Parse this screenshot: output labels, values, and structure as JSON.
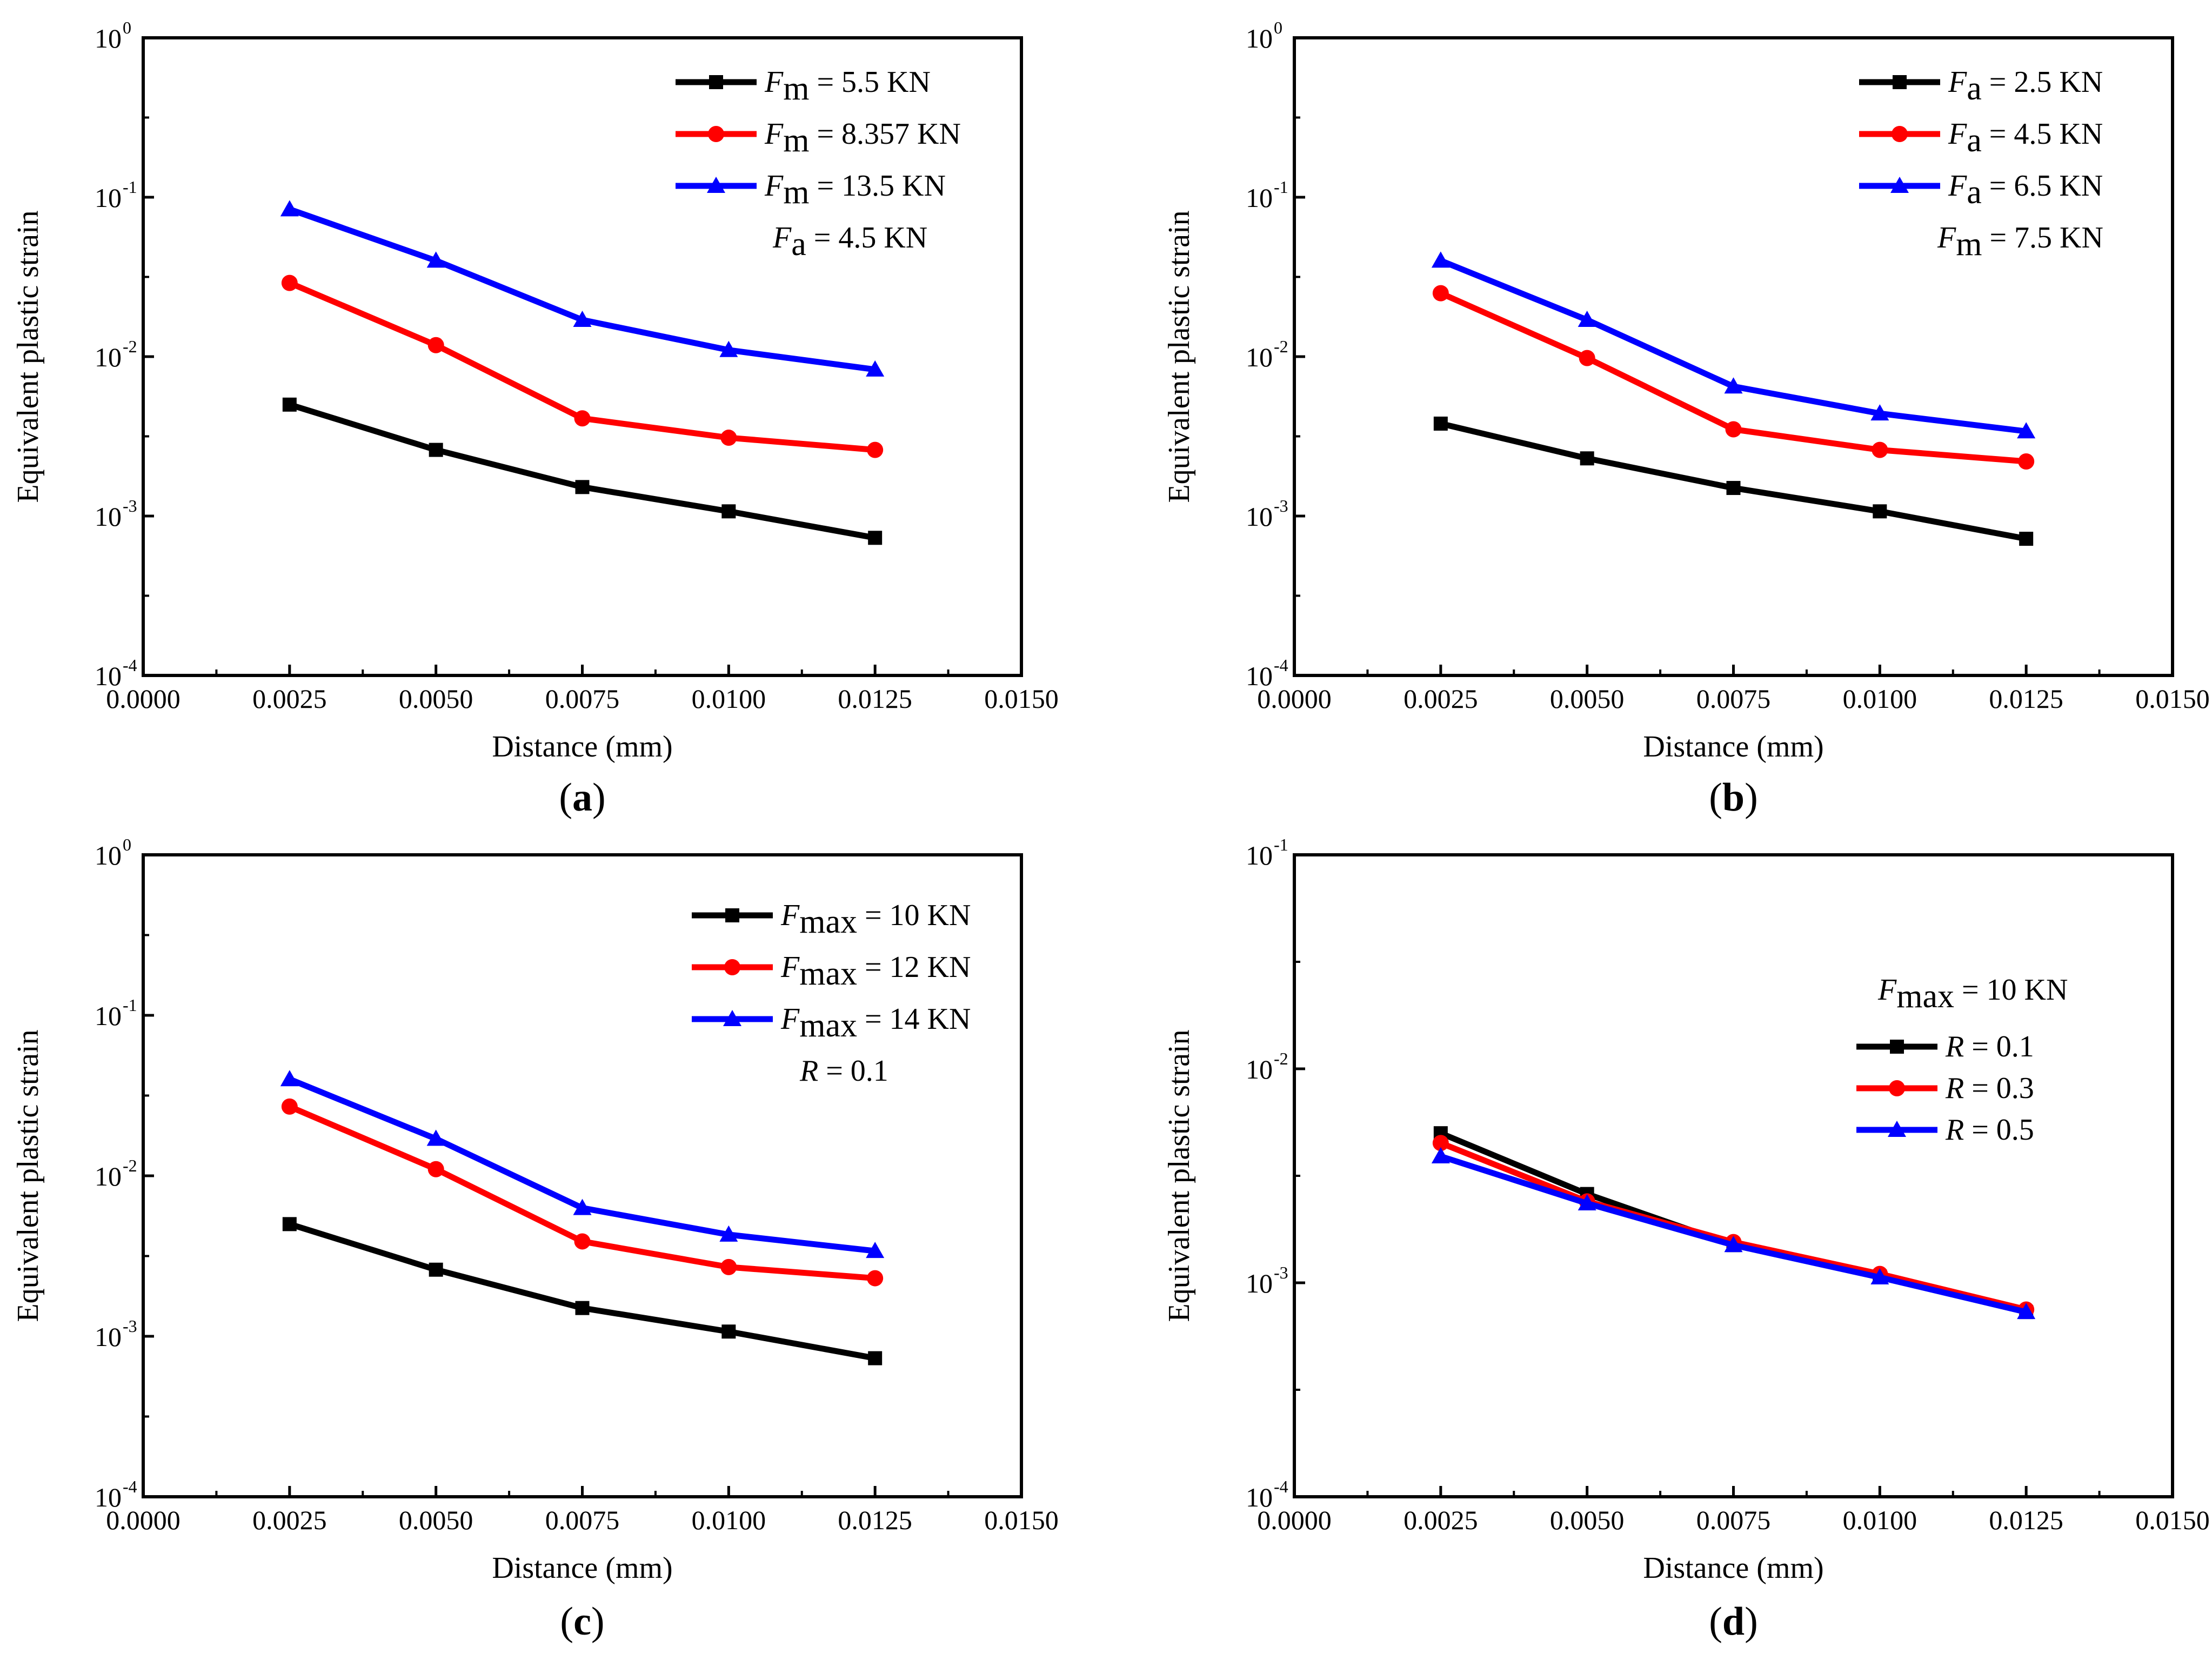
{
  "colors": {
    "black": "#000000",
    "red": "#ff0000",
    "blue": "#0000ff"
  },
  "chart_data": [
    {
      "type": "line",
      "panel_label": "a",
      "xlabel": "Distance (mm)",
      "ylabel": "Equivalent plastic strain",
      "xlim": [
        0,
        0.015
      ],
      "ylim": [
        0.0001,
        1
      ],
      "yscale": "log",
      "x_tick_labels": [
        "0.0000",
        "0.0025",
        "0.0050",
        "0.0075",
        "0.0100",
        "0.0125",
        "0.0150"
      ],
      "y_ticks": [
        {
          "base": "10",
          "exp": "-4"
        },
        {
          "base": "10",
          "exp": "-3"
        },
        {
          "base": "10",
          "exp": "-2"
        },
        {
          "base": "10",
          "exp": "-1"
        },
        {
          "base": "10",
          "exp": "0"
        }
      ],
      "x": [
        0.0025,
        0.005,
        0.0075,
        0.01,
        0.0125
      ],
      "series": [
        {
          "name": "Fm = 5.5 KN",
          "sym": "F",
          "sub": "m",
          "rest": " = 5.5 KN",
          "color": "#000000",
          "marker": "square",
          "values": [
            0.005,
            0.0026,
            0.00152,
            0.00107,
            0.00073
          ]
        },
        {
          "name": "Fm = 8.357 KN",
          "sym": "F",
          "sub": "m",
          "rest": " = 8.357 KN",
          "color": "#ff0000",
          "marker": "circle",
          "values": [
            0.029,
            0.0118,
            0.0041,
            0.0031,
            0.0026
          ]
        },
        {
          "name": "Fm = 13.5 KN",
          "sym": "F",
          "sub": "m",
          "rest": " = 13.5 KN",
          "color": "#0000ff",
          "marker": "triangle",
          "values": [
            0.084,
            0.04,
            0.017,
            0.011,
            0.0083
          ]
        }
      ],
      "note": {
        "sym": "F",
        "sub": "a",
        "rest": " = 4.5 KN"
      }
    },
    {
      "type": "line",
      "panel_label": "b",
      "xlabel": "Distance (mm)",
      "ylabel": "Equivalent plastic strain",
      "xlim": [
        0,
        0.015
      ],
      "ylim": [
        0.0001,
        1
      ],
      "yscale": "log",
      "x_tick_labels": [
        "0.0000",
        "0.0025",
        "0.0050",
        "0.0075",
        "0.0100",
        "0.0125",
        "0.0150"
      ],
      "y_ticks": [
        {
          "base": "10",
          "exp": "-4"
        },
        {
          "base": "10",
          "exp": "-3"
        },
        {
          "base": "10",
          "exp": "-2"
        },
        {
          "base": "10",
          "exp": "-1"
        },
        {
          "base": "10",
          "exp": "0"
        }
      ],
      "x": [
        0.0025,
        0.005,
        0.0075,
        0.01,
        0.0125
      ],
      "series": [
        {
          "name": "Fa = 2.5 KN",
          "sym": "F",
          "sub": "a",
          "rest": " = 2.5 KN",
          "color": "#000000",
          "marker": "square",
          "values": [
            0.0038,
            0.0023,
            0.0015,
            0.00107,
            0.00072
          ]
        },
        {
          "name": "Fa = 4.5 KN",
          "sym": "F",
          "sub": "a",
          "rest": " = 4.5 KN",
          "color": "#ff0000",
          "marker": "circle",
          "values": [
            0.025,
            0.0098,
            0.0035,
            0.0026,
            0.0022
          ]
        },
        {
          "name": "Fa = 6.5 KN",
          "sym": "F",
          "sub": "a",
          "rest": " = 6.5 KN",
          "color": "#0000ff",
          "marker": "triangle",
          "values": [
            0.04,
            0.017,
            0.0065,
            0.0044,
            0.0034
          ]
        }
      ],
      "note": {
        "sym": "F",
        "sub": "m",
        "rest": " = 7.5 KN"
      }
    },
    {
      "type": "line",
      "panel_label": "c",
      "xlabel": "Distance (mm)",
      "ylabel": "Equivalent plastic strain",
      "xlim": [
        0,
        0.015
      ],
      "ylim": [
        0.0001,
        1
      ],
      "yscale": "log",
      "x_tick_labels": [
        "0.0000",
        "0.0025",
        "0.0050",
        "0.0075",
        "0.0100",
        "0.0125",
        "0.0150"
      ],
      "y_ticks": [
        {
          "base": "10",
          "exp": "-4"
        },
        {
          "base": "10",
          "exp": "-3"
        },
        {
          "base": "10",
          "exp": "-2"
        },
        {
          "base": "10",
          "exp": "-1"
        },
        {
          "base": "10",
          "exp": "0"
        }
      ],
      "x": [
        0.0025,
        0.005,
        0.0075,
        0.01,
        0.0125
      ],
      "series": [
        {
          "name": "Fmax = 10 KN",
          "sym": "F",
          "sub": "max",
          "rest": " = 10 KN",
          "color": "#000000",
          "marker": "square",
          "values": [
            0.005,
            0.0026,
            0.0015,
            0.00107,
            0.00073
          ]
        },
        {
          "name": "Fmax = 12 KN",
          "sym": "F",
          "sub": "max",
          "rest": " = 12 KN",
          "color": "#ff0000",
          "marker": "circle",
          "values": [
            0.027,
            0.011,
            0.0039,
            0.0027,
            0.0023
          ]
        },
        {
          "name": "Fmax = 14 KN",
          "sym": "F",
          "sub": "max",
          "rest": " = 14 KN",
          "color": "#0000ff",
          "marker": "triangle",
          "values": [
            0.04,
            0.017,
            0.0063,
            0.0043,
            0.0034
          ]
        }
      ],
      "note": {
        "sym": "R",
        "sub": "",
        "rest": " = 0.1"
      }
    },
    {
      "type": "line",
      "panel_label": "d",
      "xlabel": "Distance (mm)",
      "ylabel": "Equivalent plastic strain",
      "xlim": [
        0,
        0.015
      ],
      "ylim": [
        0.0001,
        0.1
      ],
      "yscale": "log",
      "x_tick_labels": [
        "0.0000",
        "0.0025",
        "0.0050",
        "0.0075",
        "0.0100",
        "0.0125",
        "0.0150"
      ],
      "y_ticks": [
        {
          "base": "10",
          "exp": "-4"
        },
        {
          "base": "10",
          "exp": "-3"
        },
        {
          "base": "10",
          "exp": "-2"
        },
        {
          "base": "10",
          "exp": "-1"
        }
      ],
      "x": [
        0.0025,
        0.005,
        0.0075,
        0.01,
        0.0125
      ],
      "series": [
        {
          "name": "R = 0.1",
          "sym": "R",
          "sub": "",
          "rest": " = 0.1",
          "color": "#000000",
          "marker": "square",
          "values": [
            0.005,
            0.0026,
            0.0015,
            0.00107,
            0.00073
          ]
        },
        {
          "name": "R = 0.3",
          "sym": "R",
          "sub": "",
          "rest": " = 0.3",
          "color": "#ff0000",
          "marker": "circle",
          "values": [
            0.0045,
            0.0024,
            0.00155,
            0.0011,
            0.00075
          ]
        },
        {
          "name": "R = 0.5",
          "sym": "R",
          "sub": "",
          "rest": " = 0.5",
          "color": "#0000ff",
          "marker": "triangle",
          "values": [
            0.0039,
            0.00235,
            0.0015,
            0.00106,
            0.00073
          ]
        }
      ],
      "note": {
        "sym": "F",
        "sub": "max",
        "rest": " = 10 KN"
      }
    }
  ]
}
